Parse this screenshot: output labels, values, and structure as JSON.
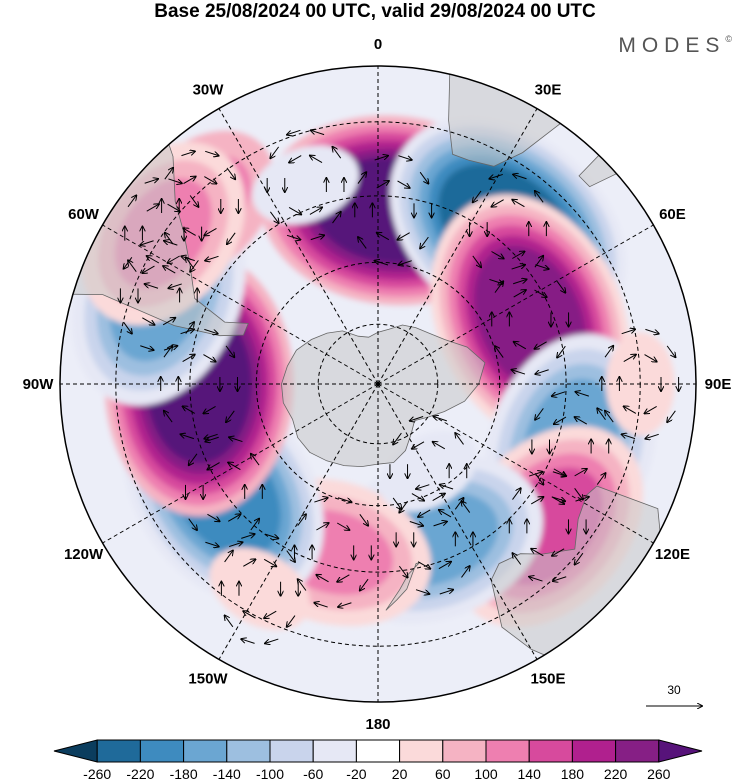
{
  "title": "Base 25/08/2024 00 UTC, valid 29/08/2024 00 UTC",
  "brand": "MODES",
  "brand_mark": "©",
  "map": {
    "projection": "south-polar-stereographic",
    "longitude_labels": [
      {
        "text": "0",
        "lon": 0
      },
      {
        "text": "30E",
        "lon": 30
      },
      {
        "text": "60E",
        "lon": 60
      },
      {
        "text": "90E",
        "lon": 90
      },
      {
        "text": "120E",
        "lon": 120
      },
      {
        "text": "150E",
        "lon": 150
      },
      {
        "text": "180",
        "lon": 180
      },
      {
        "text": "150W",
        "lon": -150
      },
      {
        "text": "120W",
        "lon": -120
      },
      {
        "text": "90W",
        "lon": -90
      },
      {
        "text": "60W",
        "lon": -60
      },
      {
        "text": "30W",
        "lon": -30
      }
    ],
    "latitude_circles": [
      -75,
      -60,
      -45,
      -30
    ],
    "reference_vector": {
      "value": "30"
    },
    "anomaly_centers": [
      {
        "lon": 5,
        "lat": -48,
        "value": 260
      },
      {
        "lon": 40,
        "lat": -42,
        "value": -260
      },
      {
        "lon": 67,
        "lat": -50,
        "value": 240
      },
      {
        "lon": 108,
        "lat": -42,
        "value": -180
      },
      {
        "lon": 130,
        "lat": -38,
        "value": 160
      },
      {
        "lon": 160,
        "lat": -50,
        "value": -150
      },
      {
        "lon": -165,
        "lat": -48,
        "value": 110
      },
      {
        "lon": -125,
        "lat": -45,
        "value": -200
      },
      {
        "lon": -90,
        "lat": -47,
        "value": 260
      },
      {
        "lon": -68,
        "lat": -35,
        "value": -170
      },
      {
        "lon": -45,
        "lat": -32,
        "value": 100
      },
      {
        "lon": -55,
        "lat": -30,
        "value": 110
      },
      {
        "lon": -20,
        "lat": -40,
        "value": -60
      },
      {
        "lon": 150,
        "lat": -65,
        "value": -40
      },
      {
        "lon": -150,
        "lat": -35,
        "value": 50
      },
      {
        "lon": 90,
        "lat": -30,
        "value": 30
      }
    ]
  },
  "colorbar": {
    "labels": [
      "-260",
      "-220",
      "-180",
      "-140",
      "-100",
      "-60",
      "-20",
      "20",
      "60",
      "100",
      "140",
      "180",
      "220",
      "260"
    ],
    "colors": [
      "#0b3d5e",
      "#1f6a9a",
      "#3e8bbf",
      "#6ba6d2",
      "#9dbfe0",
      "#c9d4ec",
      "#e6e8f5",
      "#ffffff",
      "#fbdada",
      "#f5b3c3",
      "#ee7fb0",
      "#d74a9d",
      "#b0208e",
      "#861f85",
      "#57137a"
    ]
  }
}
